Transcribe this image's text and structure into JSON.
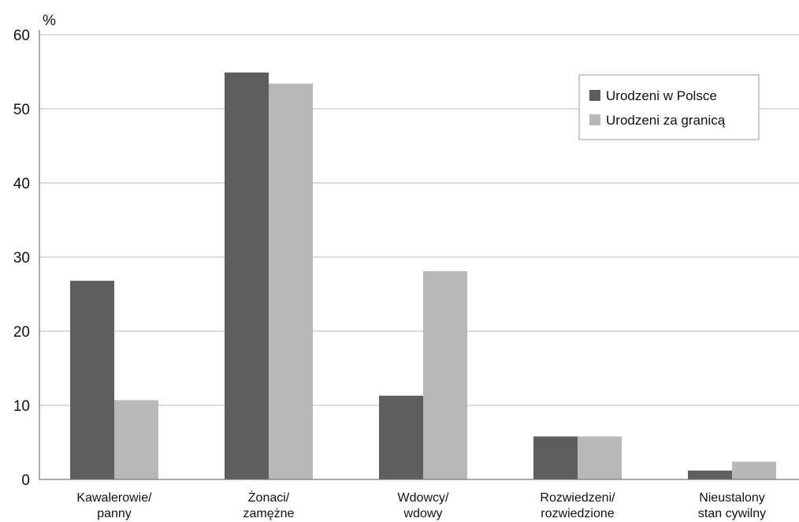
{
  "chart_data": {
    "type": "bar",
    "ylabel": "%",
    "ylim": [
      0,
      60
    ],
    "yticks": [
      0,
      10,
      20,
      30,
      40,
      50,
      60
    ],
    "grid": true,
    "legend_position": "top-right",
    "categories": [
      [
        "Kawalerowie/",
        "panny"
      ],
      [
        "Żonaci/",
        "zamężne"
      ],
      [
        "Wdowcy/",
        "wdowy"
      ],
      [
        "Rozwiedzeni/",
        "rozwiedzione"
      ],
      [
        "Nieustalony",
        "stan cywilny"
      ]
    ],
    "series": [
      {
        "name": "Urodzeni w Polsce",
        "color": "#5e5e5e",
        "values": [
          26.8,
          54.9,
          11.3,
          5.8,
          1.2
        ]
      },
      {
        "name": "Urodzeni za granicą",
        "color": "#b8b8b8",
        "values": [
          10.7,
          53.4,
          28.1,
          5.8,
          2.4
        ]
      }
    ]
  }
}
